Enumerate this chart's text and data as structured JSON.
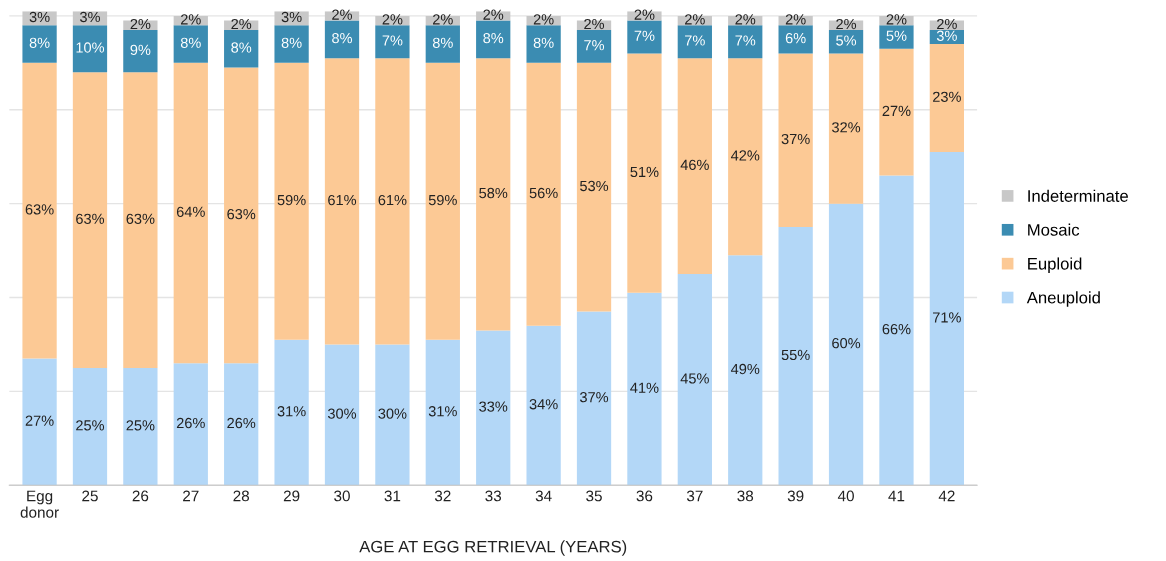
{
  "chart_data": {
    "type": "bar",
    "stacked": true,
    "xlabel": "AGE AT EGG RETRIEVAL (YEARS)",
    "categories": [
      "Egg\ndonor",
      "25",
      "26",
      "27",
      "28",
      "29",
      "30",
      "31",
      "32",
      "33",
      "34",
      "35",
      "36",
      "37",
      "38",
      "39",
      "40",
      "41",
      "42"
    ],
    "series": [
      {
        "name": "Aneuploid",
        "color": "#b3d7f7",
        "values": [
          27,
          25,
          25,
          26,
          26,
          31,
          30,
          30,
          31,
          33,
          34,
          37,
          41,
          45,
          49,
          55,
          60,
          66,
          71
        ],
        "value_labels": [
          "27%",
          "25%",
          "25%",
          "26%",
          "26%",
          "31%",
          "30%",
          "30%",
          "31%",
          "33%",
          "34%",
          "37%",
          "41%",
          "45%",
          "49%",
          "55%",
          "60%",
          "66%",
          "71%"
        ]
      },
      {
        "name": "Euploid",
        "color": "#fcc995",
        "values": [
          63,
          63,
          63,
          64,
          63,
          59,
          61,
          61,
          59,
          58,
          56,
          53,
          51,
          46,
          42,
          37,
          32,
          27,
          23
        ],
        "value_labels": [
          "63%",
          "63%",
          "63%",
          "64%",
          "63%",
          "59%",
          "61%",
          "61%",
          "59%",
          "58%",
          "56%",
          "53%",
          "51%",
          "46%",
          "42%",
          "37%",
          "32%",
          "27%",
          "23%"
        ]
      },
      {
        "name": "Mosaic",
        "color": "#3b8cb2",
        "values": [
          8,
          10,
          9,
          8,
          8,
          8,
          8,
          7,
          8,
          8,
          8,
          7,
          7,
          7,
          7,
          6,
          5,
          5,
          3
        ],
        "value_labels": [
          "8%",
          "10%",
          "9%",
          "8%",
          "8%",
          "8%",
          "8%",
          "7%",
          "8%",
          "8%",
          "8%",
          "7%",
          "7%",
          "7%",
          "7%",
          "6%",
          "5%",
          "5%",
          "3%"
        ]
      },
      {
        "name": "Indeterminate",
        "color": "#c8c8c8",
        "values": [
          3,
          3,
          2,
          2,
          2,
          3,
          2,
          2,
          2,
          2,
          2,
          2,
          2,
          2,
          2,
          2,
          2,
          2,
          2
        ],
        "value_labels": [
          "3%",
          "3%",
          "2%",
          "2%",
          "2%",
          "3%",
          "2%",
          "2%",
          "2%",
          "2%",
          "2%",
          "2%",
          "2%",
          "2%",
          "2%",
          "2%",
          "2%",
          "2%",
          "2%"
        ]
      }
    ],
    "tick_labels": "x",
    "grid": "y",
    "legend": "right"
  }
}
